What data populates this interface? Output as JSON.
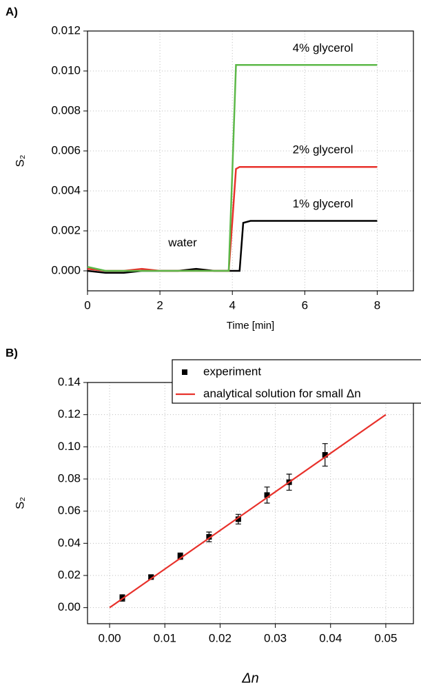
{
  "chart_data": [
    {
      "type": "line",
      "label": "A)",
      "x_label": "Time [min]",
      "y_label": "S₂",
      "x": [
        0,
        0.5,
        1,
        1.5,
        2,
        2.5,
        3,
        3.5,
        3.9,
        4.0,
        4.1,
        4.2,
        4.3,
        4.5,
        5,
        5.5,
        6,
        6.5,
        7,
        7.5,
        8
      ],
      "series": [
        {
          "name": "1% glycerol",
          "color": "#000000",
          "values": [
            0,
            -0.0001,
            -0.0001,
            0,
            0,
            0,
            0.0001,
            0,
            0,
            0,
            0,
            0,
            0.0024,
            0.0025,
            0.0025,
            0.0025,
            0.0025,
            0.0025,
            0.0025,
            0.0025,
            0.0025
          ]
        },
        {
          "name": "2% glycerol",
          "color": "#e8312b",
          "values": [
            0.0001,
            0,
            0,
            0.0001,
            0,
            0,
            0,
            0,
            0,
            0.0025,
            0.0051,
            0.0052,
            0.0052,
            0.0052,
            0.0052,
            0.0052,
            0.0052,
            0.0052,
            0.0052,
            0.0052,
            0.0052
          ]
        },
        {
          "name": "4% glycerol",
          "color": "#5cb848",
          "values": [
            0.0002,
            0,
            0,
            0,
            0,
            0,
            0,
            0,
            0,
            0.005,
            0.0103,
            0.0103,
            0.0103,
            0.0103,
            0.0103,
            0.0103,
            0.0103,
            0.0103,
            0.0103,
            0.0103,
            0.0103
          ]
        }
      ],
      "annotations": [
        "water"
      ],
      "xlim": [
        0,
        9
      ],
      "xticks": [
        0,
        2,
        4,
        6,
        8
      ],
      "ylim": [
        -0.001,
        0.012
      ],
      "yticks": [
        {
          "value": 0,
          "label": "0.000"
        },
        0.002,
        0.004,
        0.006,
        0.008,
        {
          "value": 0.01,
          "label": "0.010"
        },
        0.012
      ],
      "grid": true
    },
    {
      "type": "scatter",
      "label": "B)",
      "x_label": "Δn",
      "y_label": "S₂",
      "series": [
        {
          "name": "experiment",
          "type": "scatter",
          "color": "#000000",
          "x": [
            0.0023,
            0.0075,
            0.0128,
            0.018,
            0.0233,
            0.0285,
            0.0325,
            0.039
          ],
          "values": [
            0.006,
            0.019,
            0.032,
            0.044,
            0.055,
            0.07,
            0.078,
            0.095
          ],
          "errors": [
            0.002,
            0.001,
            0.002,
            0.003,
            0.003,
            0.005,
            0.005,
            0.007
          ]
        },
        {
          "name": "analytical solution for small Δn",
          "type": "line",
          "color": "#e8312b",
          "x": [
            0,
            0.05
          ],
          "values": [
            0,
            0.12
          ]
        }
      ],
      "legend": "top-right",
      "xlim": [
        -0.004,
        0.055
      ],
      "xticks": [
        {
          "value": 0,
          "label": "0.00"
        },
        0.01,
        0.02,
        0.03,
        0.04,
        0.05
      ],
      "ylim": [
        -0.01,
        0.14
      ],
      "yticks": [
        {
          "value": 0,
          "label": "0.00"
        },
        0.02,
        0.04,
        0.06,
        0.08,
        {
          "value": 0.1,
          "label": "0.10"
        },
        0.12,
        0.14
      ],
      "grid": true
    }
  ]
}
